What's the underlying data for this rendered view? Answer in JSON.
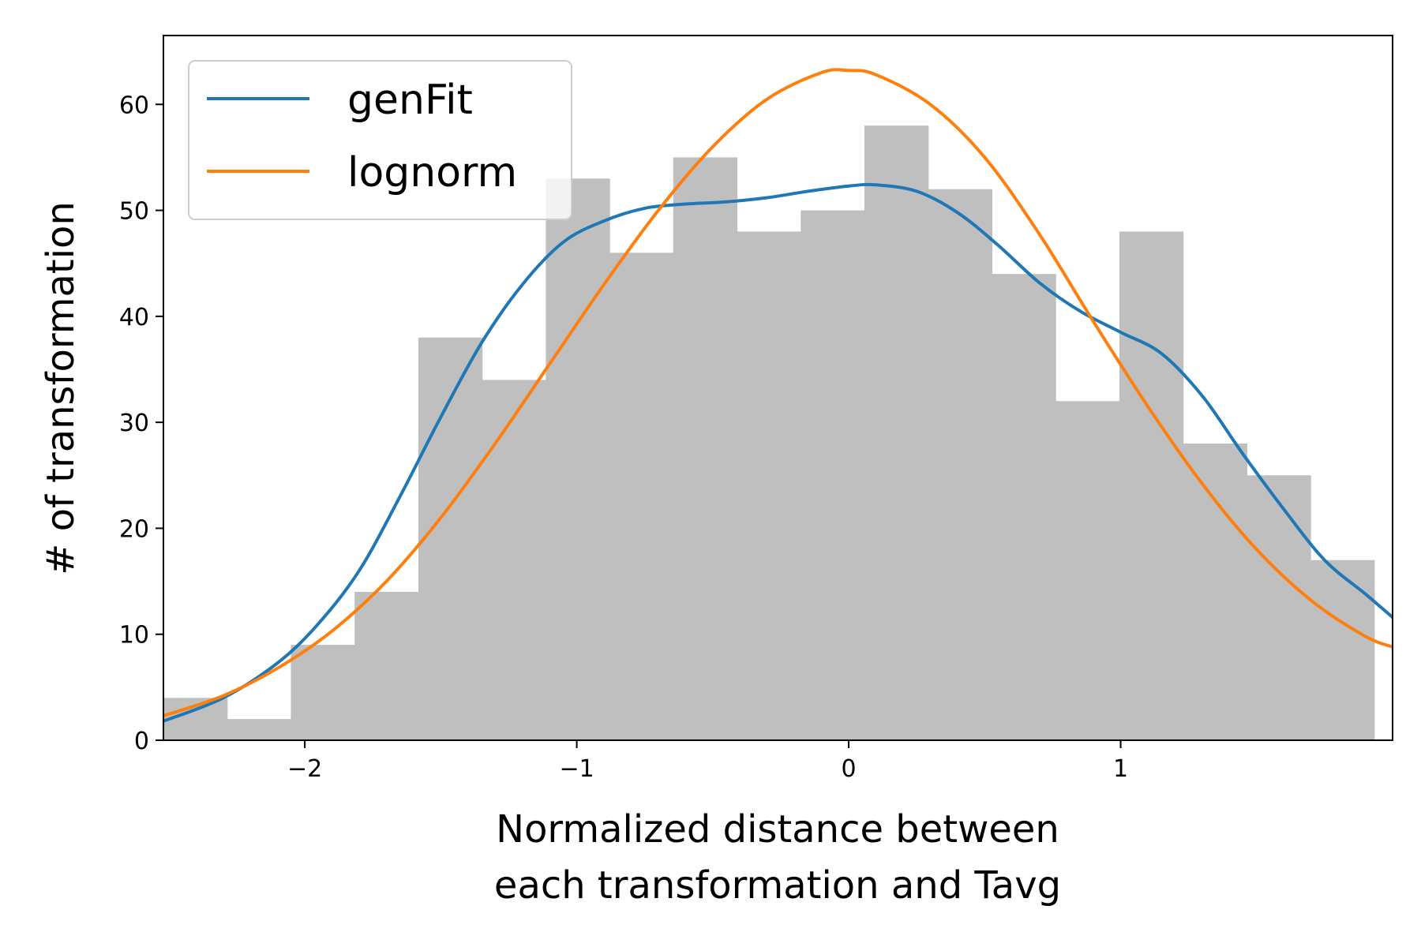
{
  "chart_data": {
    "type": "bar",
    "subtype": "histogram-with-fitted-curves",
    "title": "",
    "xlabel_lines": [
      "Normalized distance between",
      "each transformation and Tavg"
    ],
    "ylabel": "# of transformation",
    "xlim": [
      -2.52,
      2.0
    ],
    "ylim": [
      0,
      66.5
    ],
    "x_ticks": [
      -2,
      -1,
      0,
      1
    ],
    "x_tick_labels": [
      "−2",
      "−1",
      "0",
      "1"
    ],
    "y_ticks": [
      0,
      10,
      20,
      30,
      40,
      50,
      60
    ],
    "y_tick_labels": [
      "0",
      "10",
      "20",
      "30",
      "40",
      "50",
      "60"
    ],
    "grid": false,
    "legend_position": "top-left",
    "histogram": {
      "color": "#bfbfbf",
      "bin_edges": [
        -2.52,
        -2.2856,
        -2.0513,
        -1.8169,
        -1.5826,
        -1.3482,
        -1.1139,
        -0.8795,
        -0.6452,
        -0.4108,
        -0.1765,
        0.0579,
        0.2922,
        0.5266,
        0.7609,
        0.9953,
        1.2296,
        1.464,
        1.6983,
        1.9327
      ],
      "counts": [
        4,
        2,
        9,
        14,
        38,
        34,
        53,
        46,
        55,
        48,
        50,
        58,
        52,
        44,
        32,
        48,
        28,
        25,
        17
      ]
    },
    "series": [
      {
        "name": "genFit",
        "color": "#1f77b4",
        "x": [
          -2.52,
          -2.3,
          -2.1,
          -1.95,
          -1.8,
          -1.65,
          -1.5,
          -1.35,
          -1.2,
          -1.05,
          -0.9,
          -0.75,
          -0.6,
          -0.45,
          -0.3,
          -0.15,
          0.0,
          0.1,
          0.25,
          0.4,
          0.55,
          0.7,
          0.85,
          1.0,
          1.15,
          1.3,
          1.45,
          1.6,
          1.75,
          1.9,
          2.0
        ],
        "values": [
          1.8,
          4.0,
          7.3,
          11.0,
          16.0,
          23.0,
          30.5,
          37.5,
          43.0,
          47.0,
          49.0,
          50.2,
          50.6,
          50.8,
          51.2,
          51.8,
          52.3,
          52.4,
          51.8,
          49.8,
          46.7,
          43.2,
          40.5,
          38.5,
          36.5,
          32.5,
          27.0,
          21.8,
          17.0,
          13.8,
          11.6
        ]
      },
      {
        "name": "lognorm",
        "color": "#ff7f0e",
        "x": [
          -2.52,
          -2.3,
          -2.1,
          -1.9,
          -1.7,
          -1.5,
          -1.3,
          -1.1,
          -0.9,
          -0.7,
          -0.5,
          -0.3,
          -0.1,
          0.0,
          0.1,
          0.3,
          0.5,
          0.7,
          0.9,
          1.1,
          1.3,
          1.5,
          1.7,
          1.9,
          2.0
        ],
        "values": [
          2.3,
          4.2,
          6.8,
          10.3,
          15.0,
          21.0,
          28.0,
          35.5,
          43.0,
          50.0,
          56.0,
          60.5,
          63.0,
          63.2,
          62.8,
          60.0,
          55.0,
          47.8,
          39.5,
          31.5,
          24.2,
          18.0,
          13.2,
          9.8,
          8.8
        ]
      }
    ]
  }
}
